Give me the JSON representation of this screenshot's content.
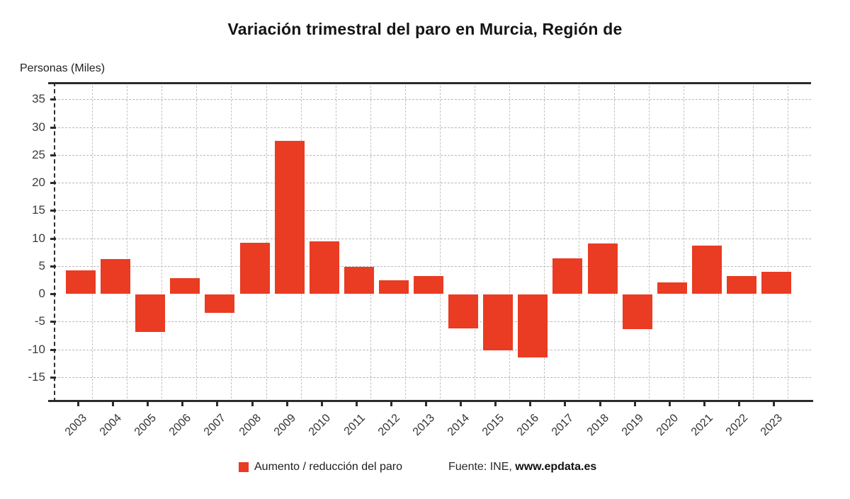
{
  "chart_data": {
    "type": "bar",
    "title": "Variación trimestral del paro en Murcia, Región de",
    "ylabel": "Personas (Miles)",
    "categories": [
      "2003",
      "2004",
      "2005",
      "2006",
      "2007",
      "2008",
      "2009",
      "2010",
      "2011",
      "2012",
      "2013",
      "2014",
      "2015",
      "2016",
      "2017",
      "2018",
      "2019",
      "2020",
      "2021",
      "2022",
      "2023"
    ],
    "values": [
      4.2,
      6.3,
      -6.7,
      2.8,
      -3.3,
      9.2,
      27.5,
      9.4,
      4.8,
      2.4,
      3.2,
      -6.1,
      -10.1,
      -11.3,
      6.4,
      9.1,
      -6.3,
      2.0,
      8.7,
      3.2,
      3.9
    ],
    "yticks": [
      35,
      30,
      25,
      20,
      15,
      10,
      5,
      0,
      -5,
      -10,
      -15
    ],
    "ylim": [
      -19,
      38
    ],
    "grid": true,
    "legend": "Aumento / reducción del paro",
    "legend_position": "bottom",
    "source_prefix": "Fuente: INE, ",
    "source_site": "www.epdata.es",
    "bar_color": "#ea3b23",
    "axis_color": "#2b2b2b"
  }
}
